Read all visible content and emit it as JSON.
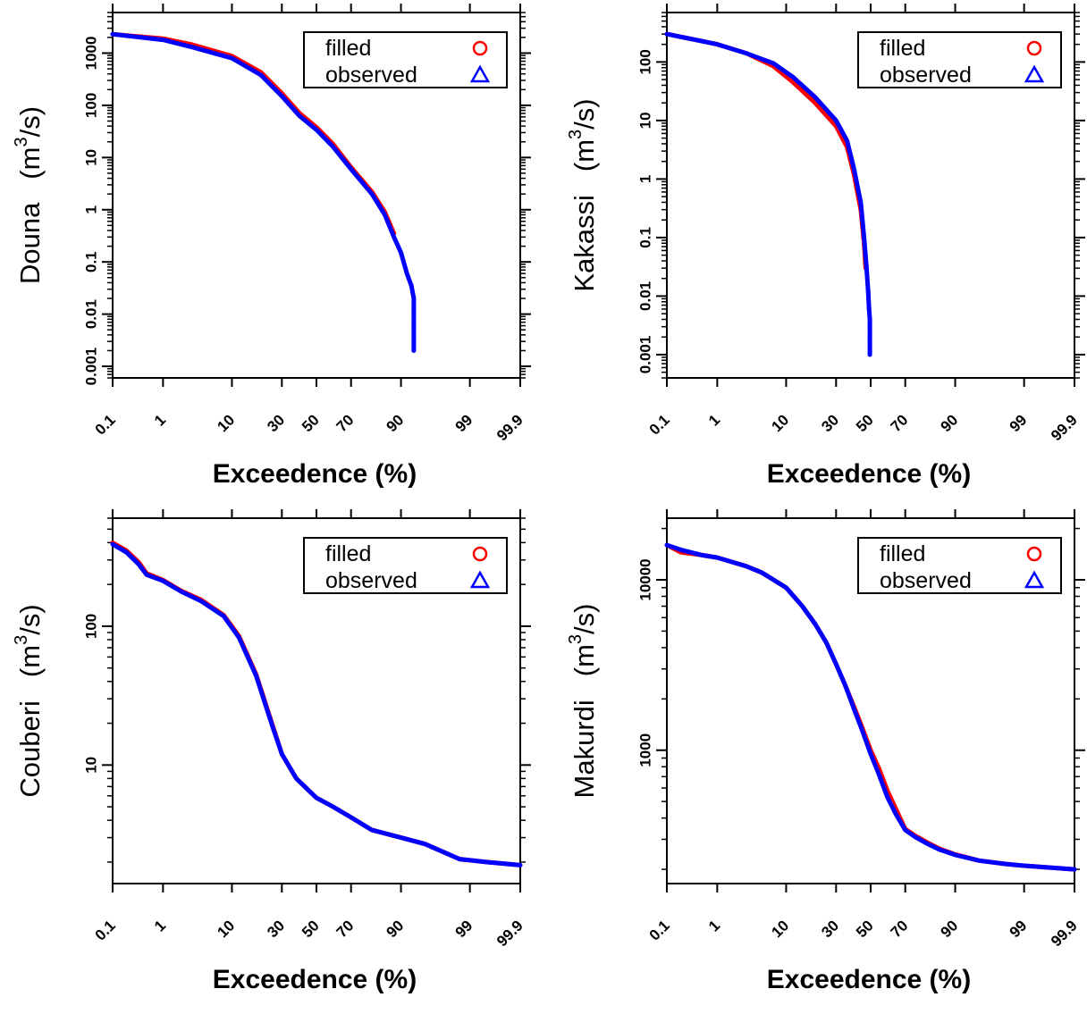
{
  "colors": {
    "filled": "#ff0000",
    "observed": "#0000ff",
    "axis": "#000000"
  },
  "chart_data": [
    {
      "type": "line",
      "ylabel": "Douna",
      "yunit_base": "(m",
      "yunit_sup": "3",
      "yunit_tail": "/s)",
      "xlabel": "Exceedence (%)",
      "xscale": "normal-probability",
      "yscale": "log",
      "xlim": [
        0.1,
        99.9
      ],
      "ylim": [
        0.0006,
        6000
      ],
      "xticks": [
        "0.1",
        "1",
        "10",
        "30",
        "50",
        "70",
        "90",
        "99",
        "99.9"
      ],
      "yticks": [
        "0.001",
        "0.01",
        "0.1",
        "1",
        "10",
        "100",
        "1000"
      ],
      "legend": {
        "position": "top-right",
        "entries": [
          "filled",
          "observed"
        ],
        "markers": [
          "circle",
          "triangle"
        ]
      },
      "series": [
        {
          "name": "filled",
          "x": [
            0.1,
            1,
            3,
            10,
            20,
            30,
            40,
            50,
            60,
            70,
            80,
            85,
            88
          ],
          "y": [
            2300,
            1900,
            1450,
            880,
            430,
            170,
            70,
            38,
            18,
            6.5,
            2.2,
            0.9,
            0.35
          ]
        },
        {
          "name": "observed",
          "x": [
            0.1,
            1,
            3,
            10,
            20,
            30,
            40,
            50,
            60,
            70,
            80,
            85,
            88,
            90,
            91.5,
            92.5,
            93,
            93,
            93,
            93,
            93
          ],
          "y": [
            2300,
            1800,
            1300,
            800,
            380,
            150,
            62,
            34,
            16,
            6,
            2,
            0.8,
            0.3,
            0.15,
            0.06,
            0.035,
            0.02,
            0.012,
            0.007,
            0.0035,
            0.002
          ]
        }
      ]
    },
    {
      "type": "line",
      "ylabel": "Kakassi",
      "yunit_base": "(m",
      "yunit_sup": "3",
      "yunit_tail": "/s)",
      "xlabel": "Exceedence (%)",
      "xscale": "normal-probability",
      "yscale": "log",
      "xlim": [
        0.1,
        99.9
      ],
      "ylim": [
        0.0004,
        700
      ],
      "xticks": [
        "0.1",
        "1",
        "10",
        "30",
        "50",
        "70",
        "90",
        "99",
        "99.9"
      ],
      "yticks": [
        "0.001",
        "0.01",
        "0.1",
        "1",
        "10",
        "100"
      ],
      "legend": {
        "position": "top-right",
        "entries": [
          "filled",
          "observed"
        ],
        "markers": [
          "circle",
          "triangle"
        ]
      },
      "series": [
        {
          "name": "filled",
          "x": [
            0.1,
            1,
            3,
            7,
            12,
            20,
            30,
            36,
            40,
            44,
            46,
            47
          ],
          "y": [
            300,
            200,
            140,
            85,
            45,
            20,
            8,
            3.5,
            1.2,
            0.3,
            0.08,
            0.03
          ]
        },
        {
          "name": "observed",
          "x": [
            0.1,
            1,
            3,
            7,
            12,
            20,
            30,
            36,
            40,
            44,
            46,
            47.5,
            48.5,
            49,
            49.5,
            49.5,
            49.5,
            49.5
          ],
          "y": [
            300,
            200,
            140,
            95,
            55,
            25,
            10,
            4.5,
            1.5,
            0.4,
            0.1,
            0.03,
            0.012,
            0.006,
            0.004,
            0.003,
            0.002,
            0.001
          ]
        }
      ]
    },
    {
      "type": "line",
      "ylabel": "Couberi",
      "yunit_base": "(m",
      "yunit_sup": "3",
      "yunit_tail": "/s)",
      "xlabel": "Exceedence (%)",
      "xscale": "normal-probability",
      "yscale": "log",
      "xlim": [
        0.1,
        99.9
      ],
      "ylim": [
        1.4,
        600
      ],
      "xticks": [
        "0.1",
        "1",
        "10",
        "30",
        "50",
        "70",
        "90",
        "99",
        "99.9"
      ],
      "yticks": [
        "10",
        "100"
      ],
      "legend": {
        "position": "top-right",
        "entries": [
          "filled",
          "observed"
        ],
        "markers": [
          "circle",
          "triangle"
        ]
      },
      "series": [
        {
          "name": "filled",
          "x": [
            0.1,
            0.2,
            0.35,
            0.5,
            1,
            2,
            4,
            8,
            12,
            18,
            25,
            30,
            38,
            50,
            60,
            70,
            80,
            90,
            95,
            98.5,
            99.5,
            99.9
          ],
          "y": [
            400,
            350,
            290,
            240,
            215,
            180,
            155,
            120,
            85,
            45,
            20,
            12,
            8,
            5.8,
            5,
            4.2,
            3.4,
            3,
            2.7,
            2.1,
            2,
            1.9
          ]
        },
        {
          "name": "observed",
          "x": [
            0.1,
            0.2,
            0.35,
            0.5,
            1,
            2,
            4,
            8,
            12,
            18,
            25,
            30,
            38,
            50,
            60,
            70,
            80,
            90,
            95,
            98.5,
            99.5,
            99.9
          ],
          "y": [
            390,
            340,
            280,
            235,
            212,
            178,
            152,
            118,
            83,
            44,
            19.5,
            12,
            8,
            5.8,
            5,
            4.2,
            3.4,
            3,
            2.7,
            2.1,
            2,
            1.9
          ]
        }
      ]
    },
    {
      "type": "line",
      "ylabel": "Makurdi",
      "yunit_base": "(m",
      "yunit_sup": "3",
      "yunit_tail": "/s)",
      "xlabel": "Exceedence (%)",
      "xscale": "normal-probability",
      "yscale": "log",
      "xlim": [
        0.1,
        99.9
      ],
      "ylim": [
        165,
        23000
      ],
      "xticks": [
        "0.1",
        "1",
        "10",
        "30",
        "50",
        "70",
        "90",
        "99",
        "99.9"
      ],
      "yticks": [
        "1000",
        "10000"
      ],
      "legend": {
        "position": "top-right",
        "entries": [
          "filled",
          "observed"
        ],
        "markers": [
          "circle",
          "triangle"
        ]
      },
      "series": [
        {
          "name": "filled",
          "x": [
            0.1,
            0.2,
            0.5,
            1,
            3,
            5,
            10,
            15,
            20,
            25,
            30,
            35,
            40,
            45,
            50,
            55,
            60,
            65,
            70,
            75,
            80,
            85,
            90,
            95,
            98,
            99,
            99.9
          ],
          "y": [
            16000,
            14500,
            14000,
            13500,
            12000,
            11000,
            9000,
            7000,
            5500,
            4300,
            3200,
            2400,
            1800,
            1350,
            1000,
            780,
            580,
            450,
            345,
            315,
            290,
            265,
            245,
            225,
            215,
            210,
            200
          ]
        },
        {
          "name": "observed",
          "x": [
            0.1,
            0.2,
            0.5,
            1,
            3,
            5,
            10,
            15,
            20,
            25,
            30,
            35,
            40,
            45,
            50,
            55,
            60,
            65,
            70,
            75,
            80,
            85,
            90,
            95,
            98,
            99,
            99.9
          ],
          "y": [
            16000,
            15000,
            14000,
            13500,
            12000,
            11000,
            9000,
            7000,
            5500,
            4300,
            3200,
            2400,
            1750,
            1300,
            950,
            720,
            530,
            420,
            340,
            310,
            285,
            262,
            243,
            225,
            215,
            210,
            200
          ]
        }
      ]
    }
  ]
}
